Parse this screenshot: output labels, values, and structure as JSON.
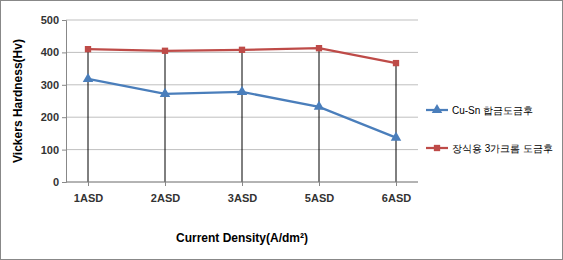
{
  "chart_data": {
    "type": "line",
    "x_label": "Current Density(A/dm²)",
    "y_label": "Vickers Hardness(Hv)",
    "categories": [
      "1ASD",
      "2ASD",
      "3ASD",
      "5ASD",
      "6ASD"
    ],
    "series": [
      {
        "name": "Cu-Sn 합금도금후",
        "color": "#4a7ebb",
        "marker": "triangle",
        "values": [
          318,
          272,
          278,
          232,
          137
        ]
      },
      {
        "name": "장식용 3가크롬 도금후",
        "color": "#be4b48",
        "marker": "square",
        "values": [
          410,
          405,
          408,
          413,
          367
        ]
      }
    ],
    "ylim": [
      0,
      500
    ],
    "yticks": [
      0,
      100,
      200,
      300,
      400,
      500
    ],
    "grid": true,
    "legend": "right"
  }
}
